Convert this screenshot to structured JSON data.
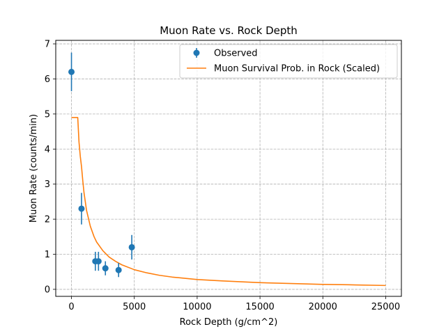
{
  "chart_data": {
    "type": "scatter",
    "title": "Muon Rate vs. Rock Depth",
    "xlabel": "Rock Depth (g/cm^2)",
    "ylabel": "Muon Rate (counts/min)",
    "xlim": [
      -1250,
      26250
    ],
    "ylim": [
      -0.2,
      7.1
    ],
    "xticks": [
      0,
      5000,
      10000,
      15000,
      20000,
      25000
    ],
    "xtick_labels": [
      "0",
      "5000",
      "10000",
      "15000",
      "20000",
      "25000"
    ],
    "yticks": [
      0,
      1,
      2,
      3,
      4,
      5,
      6,
      7
    ],
    "ytick_labels": [
      "0",
      "1",
      "2",
      "3",
      "4",
      "5",
      "6",
      "7"
    ],
    "grid": true,
    "legend_position": "top-right",
    "series": [
      {
        "name": "Observed",
        "kind": "errorbar",
        "color": "#1f77b4",
        "x": [
          0,
          800,
          1900,
          2150,
          2700,
          3750,
          4800
        ],
        "y": [
          6.2,
          2.3,
          0.8,
          0.8,
          0.6,
          0.55,
          1.2
        ],
        "yerr": [
          0.55,
          0.45,
          0.27,
          0.27,
          0.2,
          0.2,
          0.35
        ]
      },
      {
        "name": "Muon Survival Prob. in Rock (Scaled)",
        "kind": "line",
        "color": "#ff7f0e",
        "x": [
          0,
          500,
          600,
          700,
          800,
          900,
          1000,
          1200,
          1500,
          1800,
          2000,
          2500,
          3000,
          3500,
          4000,
          5000,
          6000,
          7000,
          8000,
          10000,
          12000,
          15000,
          18000,
          20000,
          22000,
          25000
        ],
        "y": [
          4.9,
          4.9,
          4.2,
          3.8,
          3.5,
          3.1,
          2.75,
          2.25,
          1.8,
          1.5,
          1.35,
          1.1,
          0.92,
          0.8,
          0.7,
          0.56,
          0.47,
          0.4,
          0.35,
          0.28,
          0.24,
          0.19,
          0.16,
          0.14,
          0.13,
          0.11
        ]
      }
    ]
  }
}
